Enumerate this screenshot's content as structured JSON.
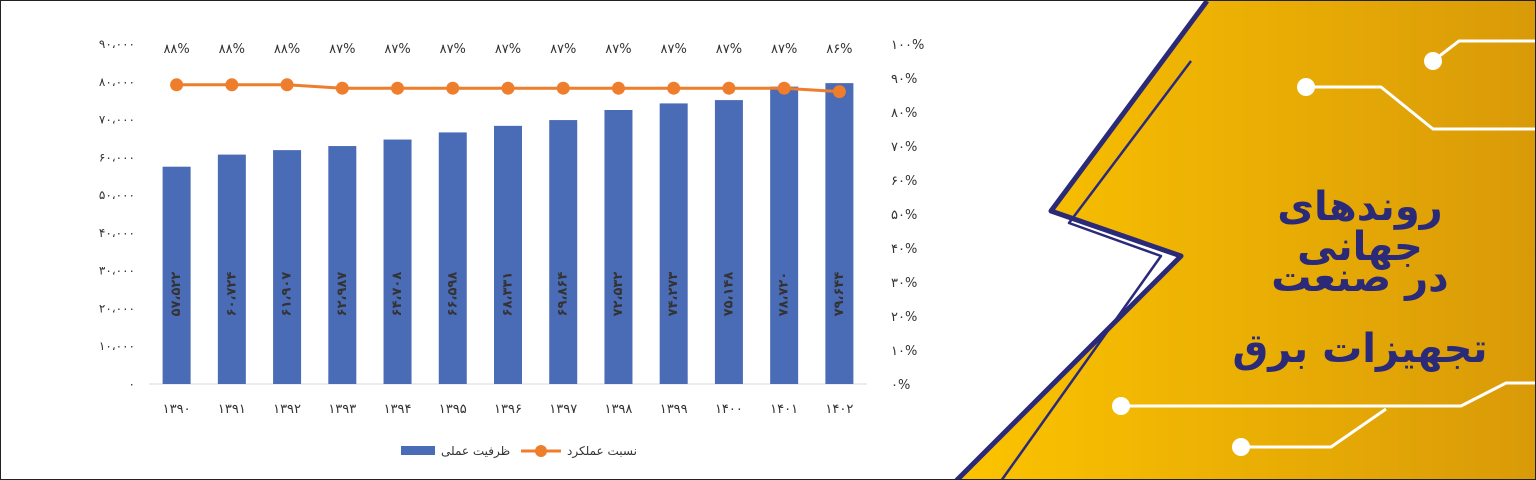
{
  "banner": {
    "title_lines": [
      "روندهای جهانی",
      "در صنعت",
      "تجهیزات برق"
    ],
    "colors": {
      "gold_light": "#fcc400",
      "gold_dark": "#d99a08",
      "navy": "#2b2a78",
      "bar_blue": "#4a6bb5",
      "line_orange": "#ee7d2c"
    }
  },
  "chart_data": {
    "type": "bar",
    "categories": [
      "۱۳۹۰",
      "۱۳۹۱",
      "۱۳۹۲",
      "۱۳۹۳",
      "۱۳۹۴",
      "۱۳۹۵",
      "۱۳۹۶",
      "۱۳۹۷",
      "۱۳۹۸",
      "۱۳۹۹",
      "۱۴۰۰",
      "۱۴۰۱",
      "۱۴۰۲"
    ],
    "series": [
      {
        "name": "ظرفیت عملی",
        "kind": "bar",
        "axis": "left",
        "values": [
          57522,
          60724,
          61907,
          62987,
          64708,
          66598,
          68331,
          69864,
          72532,
          74273,
          75148,
          78720,
          79644
        ],
        "value_labels": [
          "۵۷،۵۲۲",
          "۶۰،۷۲۴",
          "۶۱،۹۰۷",
          "۶۲،۹۸۷",
          "۶۴،۷۰۸",
          "۶۶،۵۹۸",
          "۶۸،۳۳۱",
          "۶۹،۸۶۴",
          "۷۲،۵۳۲",
          "۷۴،۲۷۳",
          "۷۵،۱۴۸",
          "۷۸،۷۲۰",
          "۷۹،۶۴۴"
        ]
      },
      {
        "name": "نسبت عملکرد",
        "kind": "line",
        "axis": "right",
        "values": [
          88,
          88,
          88,
          87,
          87,
          87,
          87,
          87,
          87,
          87,
          87,
          87,
          86
        ],
        "value_labels": [
          "۸۸%",
          "۸۸%",
          "۸۸%",
          "۸۷%",
          "۸۷%",
          "۸۷%",
          "۸۷%",
          "۸۷%",
          "۸۷%",
          "۸۷%",
          "۸۷%",
          "۸۷%",
          "۸۶%"
        ]
      }
    ],
    "left_axis": {
      "ylim": [
        0,
        90000
      ],
      "tick_values": [
        0,
        10000,
        20000,
        30000,
        40000,
        50000,
        60000,
        70000,
        80000,
        90000
      ],
      "tick_labels": [
        "۰",
        "۱۰،۰۰۰",
        "۲۰،۰۰۰",
        "۳۰،۰۰۰",
        "۴۰،۰۰۰",
        "۵۰،۰۰۰",
        "۶۰،۰۰۰",
        "۷۰،۰۰۰",
        "۸۰،۰۰۰",
        "۹۰،۰۰۰"
      ]
    },
    "right_axis": {
      "ylim": [
        0,
        100
      ],
      "tick_values": [
        0,
        10,
        20,
        30,
        40,
        50,
        60,
        70,
        80,
        90,
        100
      ],
      "tick_labels": [
        "۰%",
        "۱۰%",
        "۲۰%",
        "۳۰%",
        "۴۰%",
        "۵۰%",
        "۶۰%",
        "۷۰%",
        "۸۰%",
        "۹۰%",
        "۱۰۰%"
      ]
    },
    "grid": false,
    "legend_position": "bottom"
  }
}
